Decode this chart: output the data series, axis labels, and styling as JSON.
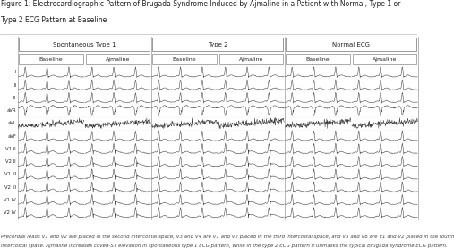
{
  "title_line1": "Figure 1: Electrocardiographic Pattern of Brugada Syndrome Induced by Ajmaline in a Patient with Normal, Type 1 or",
  "title_line2": "Type 2 ECG Pattern at Baseline",
  "title_fontsize": 5.5,
  "background_color": "#ffffff",
  "col_groups": [
    "Spontaneous Type 1",
    "Type 2",
    "Normal ECG"
  ],
  "col_subgroups": [
    "Baseline",
    "Ajmaline"
  ],
  "lead_labels": [
    "I",
    "II",
    "III",
    "aVR",
    "aVL",
    "aVF",
    "V1 II",
    "V2 II",
    "V1 III",
    "V2 III",
    "V1 IV",
    "V2 IV"
  ],
  "caption_line1": "Precordial leads V1 and V2 are placed in the second intercostal space, V3 and V4 are V1 and V2 placed in the third intercostal space, and V5 and V6 are V1 and V2 placed in the fourth",
  "caption_line2": "intercostal space. Ajmaline increases coved-ST elevation in spontaneous type 1 ECG pattern, while in the type 2 ECG pattern it unmasks the typical Brugada syndrome ECG pattern.",
  "caption_fontsize": 4.0,
  "ecg_color": "#333333",
  "border_color": "#999999",
  "text_color": "#222222"
}
